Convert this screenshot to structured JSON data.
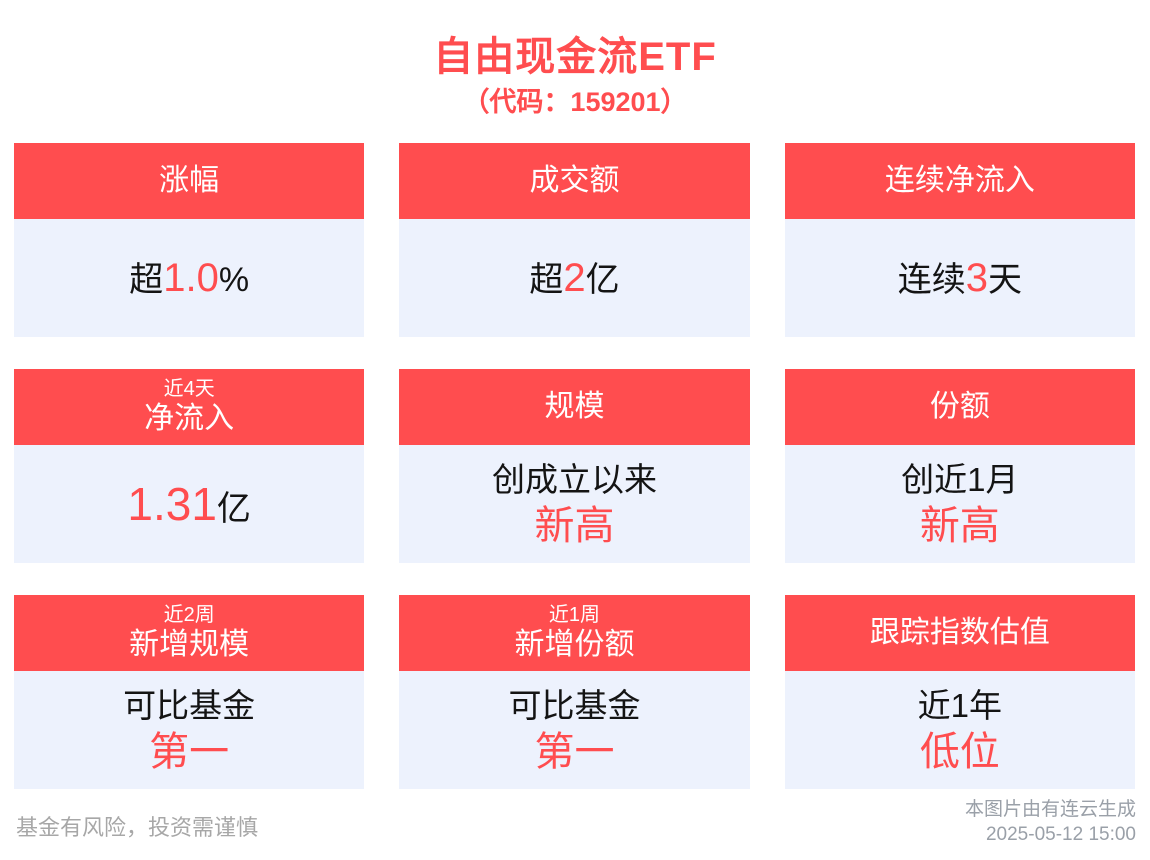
{
  "poster": {
    "title": "自由现金流ETF",
    "subtitle": "（代码：159201）"
  },
  "cards": [
    {
      "header_small": "",
      "header_main": "涨幅",
      "body_prefix": "超",
      "body_value": "1.0",
      "body_suffix": "%"
    },
    {
      "header_small": "",
      "header_main": "成交额",
      "body_prefix": "超",
      "body_value": "2",
      "body_suffix": "亿"
    },
    {
      "header_small": "",
      "header_main": "连续净流入",
      "body_prefix": "连续",
      "body_value": "3",
      "body_suffix": "天"
    },
    {
      "header_small": "近4天",
      "header_main": "净流入",
      "body_prefix": "",
      "body_value": "1.31",
      "body_suffix": "亿"
    },
    {
      "header_small": "",
      "header_main": "规模",
      "body_line1": "创成立以来",
      "body_line2": "新高"
    },
    {
      "header_small": "",
      "header_main": "份额",
      "body_line1": "创近1月",
      "body_line2": "新高"
    },
    {
      "header_small": "近2周",
      "header_main": "新增规模",
      "body_line1": "可比基金",
      "body_line2": "第一"
    },
    {
      "header_small": "近1周",
      "header_main": "新增份额",
      "body_line1": "可比基金",
      "body_line2": "第一"
    },
    {
      "header_small": "",
      "header_main": "跟踪指数估值",
      "body_line1": "近1年",
      "body_line2": "低位"
    }
  ],
  "footer": {
    "disclaimer": "基金有风险，投资需谨慎",
    "credit": "本图片由有连云生成",
    "timestamp": "2025-05-12 15:00"
  },
  "colors": {
    "accent_red": "#ff4d4f",
    "card_body_bg": "#edf2fd",
    "text_dark": "#141414",
    "muted_gray": "#a7a7a7",
    "footer_gray": "#9aa0a8"
  }
}
